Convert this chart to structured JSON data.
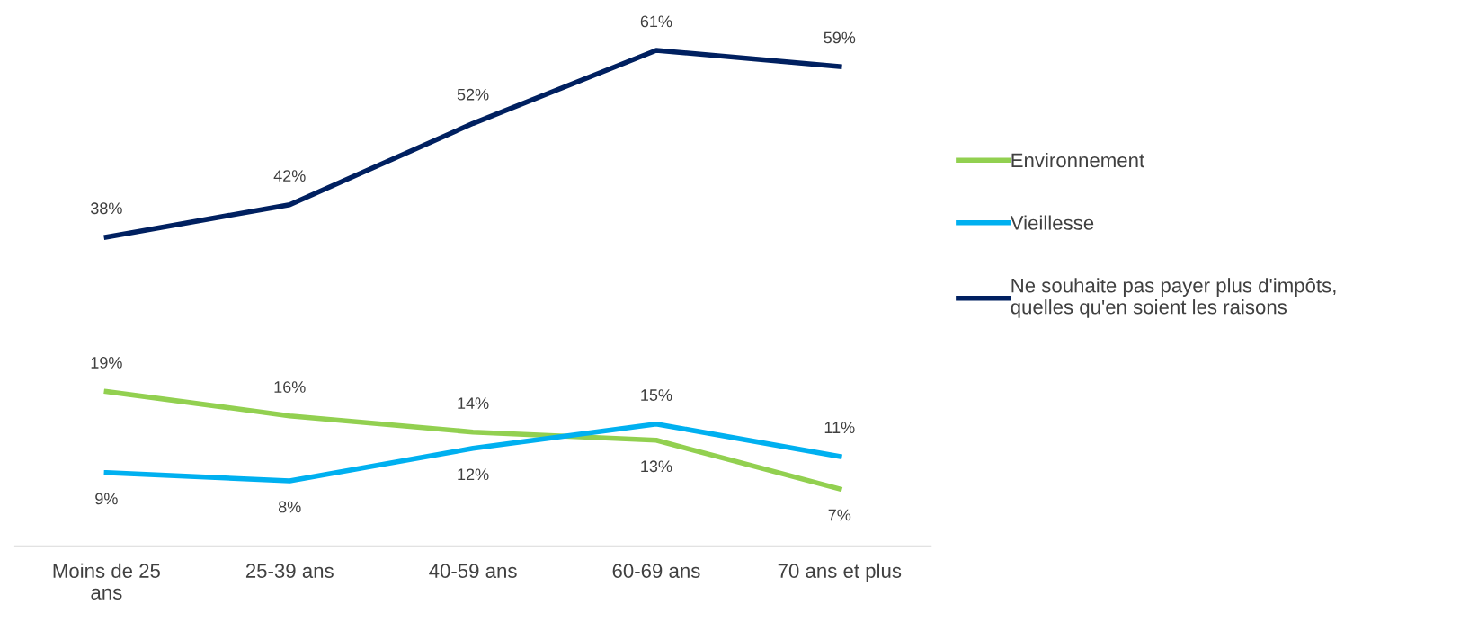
{
  "chart_data": {
    "type": "line",
    "categories": [
      "Moins de 25\nans",
      "25-39 ans",
      "40-59 ans",
      "60-69 ans",
      "70 ans et plus"
    ],
    "series": [
      {
        "name": "Environnement",
        "color": "#92d050",
        "values": [
          19,
          16,
          14,
          13,
          7
        ],
        "value_labels": [
          "19%",
          "16%",
          "14%",
          "13%",
          "7%"
        ]
      },
      {
        "name": "Vieillesse",
        "color": "#00b0f0",
        "values": [
          9,
          8,
          12,
          15,
          11
        ],
        "value_labels": [
          "9%",
          "8%",
          "12%",
          "15%",
          "11%"
        ]
      },
      {
        "name": "Ne souhaite pas payer plus d'impôts,\nquelles qu'en soient les raisons",
        "color": "#002060",
        "values": [
          38,
          42,
          52,
          61,
          59
        ],
        "value_labels": [
          "38%",
          "42%",
          "52%",
          "61%",
          "59%"
        ]
      }
    ],
    "legend": "right",
    "grid": false,
    "marker": "none",
    "line_style": "solid"
  }
}
